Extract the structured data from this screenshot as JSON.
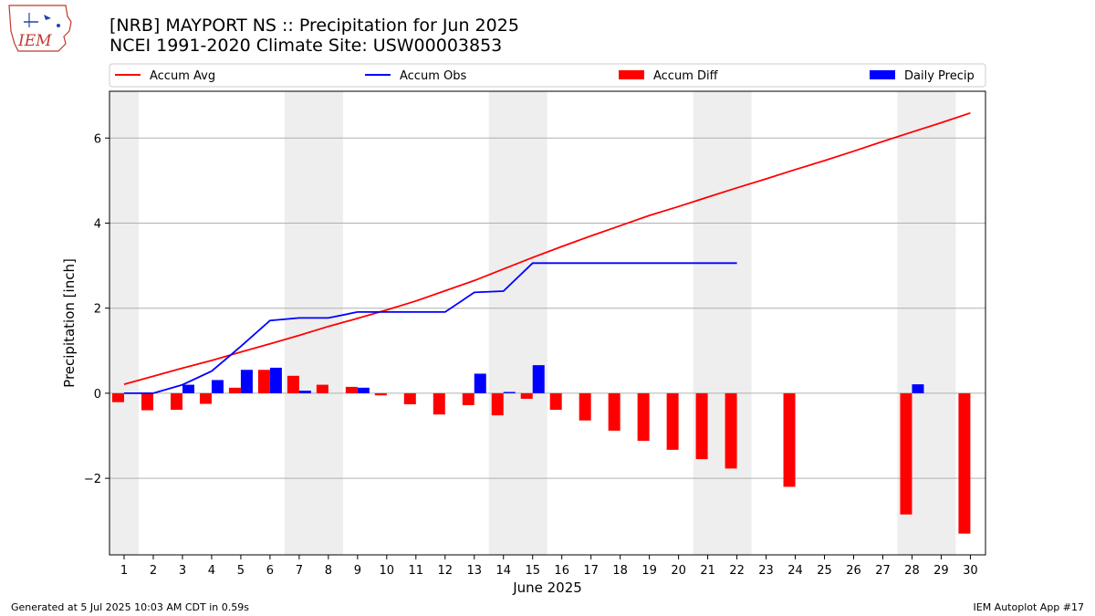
{
  "header": {
    "title_line1": "[NRB] MAYPORT NS :: Precipitation for Jun 2025",
    "title_line2": "NCEI 1991-2020 Climate Site: USW00003853",
    "logo_text": "IEM"
  },
  "footer": {
    "left": "Generated at 5 Jul 2025 10:03 AM CDT in 0.59s",
    "right": "IEM Autoplot App #17"
  },
  "chart_data": {
    "type": "bar",
    "xlabel": "June 2025",
    "ylabel": "Precipitation [inch]",
    "ylim": [
      -3.8,
      7.1
    ],
    "yticks": [
      -2,
      0,
      2,
      4,
      6
    ],
    "grid": "horizontal",
    "legend_placement": "top, above plot",
    "weekend_shading": [
      [
        1,
        1
      ],
      [
        7,
        8
      ],
      [
        14,
        15
      ],
      [
        21,
        22
      ],
      [
        28,
        29
      ]
    ],
    "days": [
      1,
      2,
      3,
      4,
      5,
      6,
      7,
      8,
      9,
      10,
      11,
      12,
      13,
      14,
      15,
      16,
      17,
      18,
      19,
      20,
      21,
      22,
      23,
      24,
      25,
      26,
      27,
      28,
      29,
      30
    ],
    "series": [
      {
        "name": "Accum Avg",
        "kind": "line",
        "color": "#ff0000",
        "x": [
          1,
          2,
          3,
          4,
          5,
          6,
          7,
          8,
          9,
          10,
          11,
          12,
          13,
          14,
          15,
          16,
          17,
          18,
          19,
          20,
          21,
          22,
          23,
          24,
          25,
          26,
          27,
          28,
          29,
          30
        ],
        "values": [
          0.21,
          0.4,
          0.59,
          0.77,
          0.97,
          1.16,
          1.36,
          1.57,
          1.76,
          1.96,
          2.17,
          2.41,
          2.65,
          2.92,
          3.19,
          3.45,
          3.7,
          3.94,
          4.18,
          4.39,
          4.61,
          4.83,
          5.04,
          5.26,
          5.47,
          5.69,
          5.92,
          6.14,
          6.36,
          6.59
        ]
      },
      {
        "name": "Accum Obs",
        "kind": "line",
        "color": "#0000ff",
        "x": [
          1,
          2,
          3,
          4,
          5,
          6,
          7,
          8,
          9,
          10,
          11,
          12,
          13,
          14,
          15,
          16,
          17,
          18,
          19,
          20,
          21,
          22
        ],
        "values": [
          0.0,
          0.0,
          0.2,
          0.52,
          1.1,
          1.71,
          1.77,
          1.77,
          1.91,
          1.91,
          1.91,
          1.91,
          2.37,
          2.4,
          3.06,
          3.06,
          3.06,
          3.06,
          3.06,
          3.06,
          3.06,
          3.06
        ]
      },
      {
        "name": "Accum Diff",
        "kind": "bar",
        "color": "#ff0000",
        "x": [
          1,
          2,
          3,
          4,
          5,
          6,
          7,
          8,
          9,
          10,
          11,
          12,
          13,
          14,
          15,
          16,
          17,
          18,
          19,
          20,
          21,
          22,
          24,
          28,
          30
        ],
        "values": [
          -0.21,
          -0.4,
          -0.39,
          -0.25,
          0.13,
          0.55,
          0.41,
          0.2,
          0.15,
          -0.05,
          -0.26,
          -0.5,
          -0.28,
          -0.52,
          -0.13,
          -0.39,
          -0.64,
          -0.88,
          -1.12,
          -1.33,
          -1.55,
          -1.77,
          -2.2,
          -2.85,
          -3.3
        ]
      },
      {
        "name": "Daily Precip",
        "kind": "bar",
        "color": "#0000ff",
        "x": [
          3,
          4,
          5,
          6,
          7,
          9,
          13,
          14,
          15,
          28
        ],
        "values": [
          0.2,
          0.31,
          0.55,
          0.6,
          0.06,
          0.13,
          0.46,
          0.03,
          0.66,
          0.21
        ]
      }
    ]
  }
}
